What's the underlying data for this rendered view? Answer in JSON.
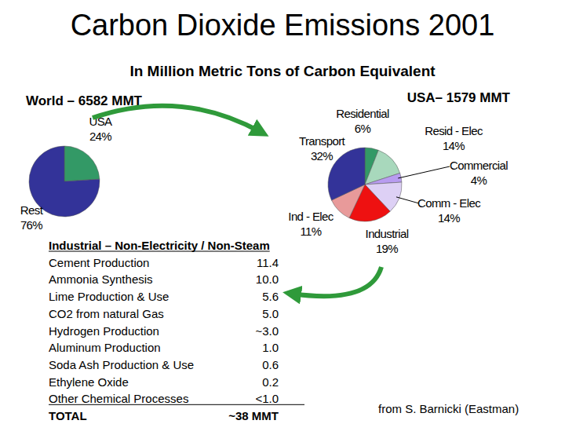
{
  "title": "Carbon Dioxide Emissions 2001",
  "subtitle": "In Million Metric Tons of Carbon Equivalent",
  "chart_data": [
    {
      "type": "pie",
      "title": "World – 6582 MMT",
      "categories": [
        "USA",
        "Rest"
      ],
      "values": [
        24,
        76
      ],
      "value_labels": [
        "24%",
        "76%"
      ],
      "colors": [
        "#339966",
        "#333399"
      ]
    },
    {
      "type": "pie",
      "title": "USA– 1579 MMT",
      "categories": [
        "Residential",
        "Resid - Elec",
        "Commercial",
        "Comm - Elec",
        "Industrial",
        "Ind - Elec",
        "Transport"
      ],
      "values": [
        6,
        14,
        4,
        14,
        19,
        11,
        32
      ],
      "value_labels": [
        "6%",
        "14%",
        "4%",
        "14%",
        "19%",
        "11%",
        "32%"
      ],
      "colors": [
        "#339966",
        "#a8d8bc",
        "#b89cf0",
        "#ddd0f5",
        "#ee1111",
        "#e89a9a",
        "#333399"
      ]
    }
  ],
  "table": {
    "title": "Industrial – Non-Electricity / Non-Steam",
    "rows": [
      [
        "Cement Production",
        "11.4"
      ],
      [
        "Ammonia Synthesis",
        "10.0"
      ],
      [
        "Lime Production & Use",
        "5.6"
      ],
      [
        "CO2 from natural Gas",
        "5.0"
      ],
      [
        "Hydrogen Production",
        "~3.0"
      ],
      [
        "Aluminum Production",
        "1.0"
      ],
      [
        "Soda Ash Production & Use",
        "0.6"
      ],
      [
        "Ethylene Oxide",
        "0.2"
      ],
      [
        "Other Chemical Processes",
        "<1.0"
      ]
    ],
    "total": [
      "TOTAL",
      "~38 MMT"
    ]
  },
  "source": "from S. Barnicki (Eastman)"
}
